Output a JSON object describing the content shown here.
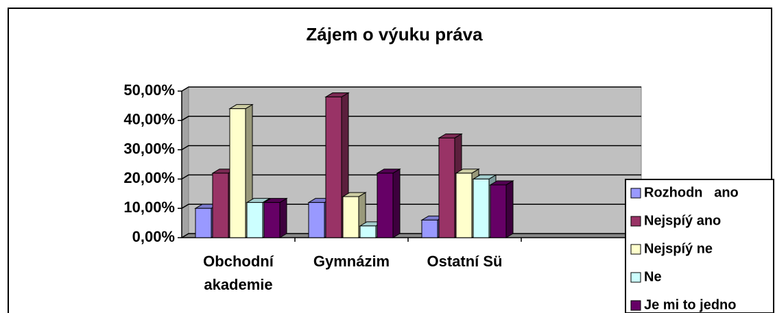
{
  "chart_data": {
    "type": "bar3d",
    "title": "Zájem o výuku práva",
    "categories": [
      "Obchodní\nakademie",
      "Gymnázim",
      "Ostatní Sü",
      null
    ],
    "series": [
      {
        "name": "Rozhodn   ano",
        "color": "#9999ff",
        "values": [
          10,
          12,
          6,
          null
        ]
      },
      {
        "name": "Nejspíý ano",
        "color": "#993366",
        "values": [
          22,
          48,
          34,
          null
        ]
      },
      {
        "name": "Nejspíý ne",
        "color": "#ffffcc",
        "values": [
          44,
          14,
          22,
          null
        ]
      },
      {
        "name": "Ne",
        "color": "#ccffff",
        "values": [
          12,
          4,
          20,
          null
        ]
      },
      {
        "name": "Je mi to jedno",
        "color": "#660066",
        "values": [
          12,
          22,
          18,
          null
        ]
      }
    ],
    "ylim": [
      0,
      50
    ],
    "yticks": [
      {
        "value": 0,
        "label": "0,00%"
      },
      {
        "value": 10,
        "label": "10,00%"
      },
      {
        "value": 20,
        "label": "20,00%"
      },
      {
        "value": 30,
        "label": "30,00%"
      },
      {
        "value": 40,
        "label": "40,00%"
      },
      {
        "value": 50,
        "label": "50,00%"
      }
    ],
    "grid": true,
    "wall_color": "#c0c0c0",
    "legend": "right"
  }
}
